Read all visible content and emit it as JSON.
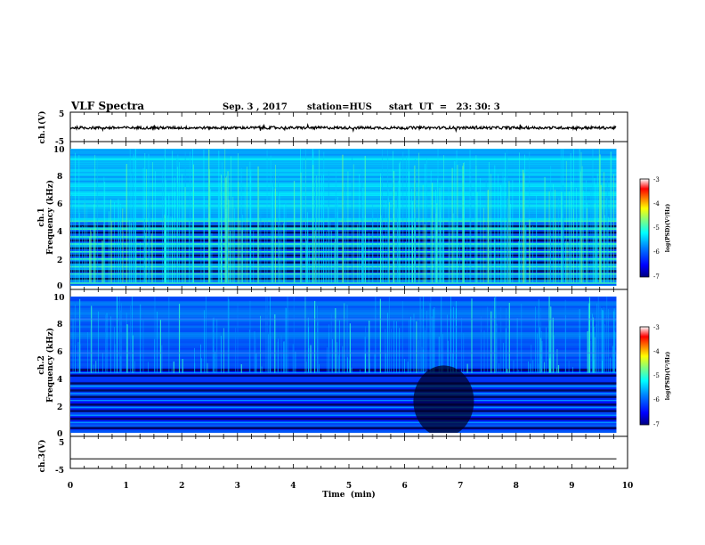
{
  "header": {
    "title": "VLF Spectra",
    "date": "Sep. 3  , 2017",
    "station": "station=HUS",
    "start_ut": "start  UT  =   23: 30: 3"
  },
  "colors": {
    "colormap": [
      "#000080",
      "#0000ff",
      "#0080ff",
      "#00ffff",
      "#80ff80",
      "#ffff00",
      "#ff8000",
      "#ff0000",
      "#ffffff"
    ]
  },
  "chart_data": [
    {
      "type": "line",
      "panel": "ch1-waveform",
      "ylabel": "ch.1(V)",
      "ylim": [
        -5,
        5
      ],
      "yticks": [
        "5",
        "-5"
      ],
      "xlim": [
        0,
        9.8
      ],
      "baseline": -0.3
    },
    {
      "type": "heatmap",
      "panel": "ch1-spectrogram",
      "ylabel": [
        "ch.1",
        "Frequency (kHz)"
      ],
      "ylim": [
        0,
        10
      ],
      "yticks": [
        "0",
        "2",
        "4",
        "6",
        "8",
        "10"
      ],
      "xlim": [
        0,
        9.8
      ],
      "colorbar": {
        "label": "log(PSD)(V²/Hz)",
        "range": [
          -7,
          -3
        ],
        "ticks": [
          "-3",
          "-4",
          "-5",
          "-6",
          "-7"
        ]
      }
    },
    {
      "type": "heatmap",
      "panel": "ch2-spectrogram",
      "ylabel": [
        "ch.2",
        "Frequency (kHz)"
      ],
      "ylim": [
        0,
        10
      ],
      "yticks": [
        "0",
        "2",
        "4",
        "6",
        "8",
        "10"
      ],
      "xlim": [
        0,
        9.8
      ],
      "colorbar": {
        "label": "log(PSD)(V²/Hz)",
        "range": [
          -7,
          -3
        ],
        "ticks": [
          "-3",
          "-4",
          "-5",
          "-6",
          "-7"
        ]
      }
    },
    {
      "type": "line",
      "panel": "ch3-waveform",
      "ylabel": "ch.3(V)",
      "ylim": [
        -5,
        5
      ],
      "yticks": [
        "5",
        "-5"
      ],
      "xlim": [
        0,
        9.8
      ],
      "baseline": -2
    }
  ],
  "xaxis": {
    "label": "Time  (min)",
    "range": [
      0,
      10
    ],
    "ticks": [
      "0",
      "1",
      "2",
      "3",
      "4",
      "5",
      "6",
      "7",
      "8",
      "9",
      "10"
    ]
  }
}
